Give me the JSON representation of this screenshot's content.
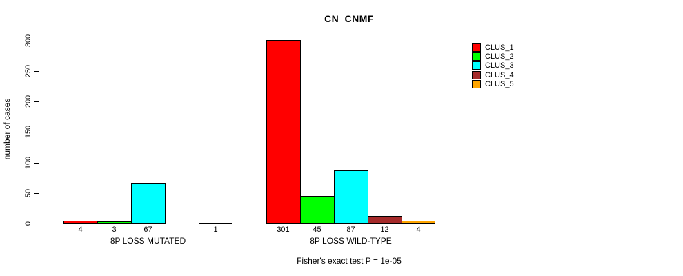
{
  "chart_data": {
    "type": "bar",
    "title": "CN_CNMF",
    "ylabel": "number of cases",
    "ylim": [
      0,
      300
    ],
    "yticks": [
      0,
      50,
      100,
      150,
      200,
      250,
      300
    ],
    "grid": false,
    "legend_position": "top-right",
    "clusters": [
      {
        "name": "CLUS_1",
        "color": "#FF0000"
      },
      {
        "name": "CLUS_2",
        "color": "#00FF00"
      },
      {
        "name": "CLUS_3",
        "color": "#00FFFF"
      },
      {
        "name": "CLUS_4",
        "color": "#A52A2A"
      },
      {
        "name": "CLUS_5",
        "color": "#FFA500"
      }
    ],
    "groups": [
      {
        "label": "8P LOSS MUTATED",
        "values": [
          4,
          3,
          67,
          0,
          1
        ],
        "value_labels": [
          "4",
          "3",
          "67",
          "",
          "1"
        ]
      },
      {
        "label": "8P LOSS WILD-TYPE",
        "values": [
          301,
          45,
          87,
          12,
          4
        ],
        "value_labels": [
          "301",
          "45",
          "87",
          "12",
          "4"
        ]
      }
    ],
    "annotation": "Fisher's exact test P = 1e-05"
  },
  "colors": {
    "background": "#FFFFFF",
    "axis": "#000000",
    "text": "#000000"
  }
}
